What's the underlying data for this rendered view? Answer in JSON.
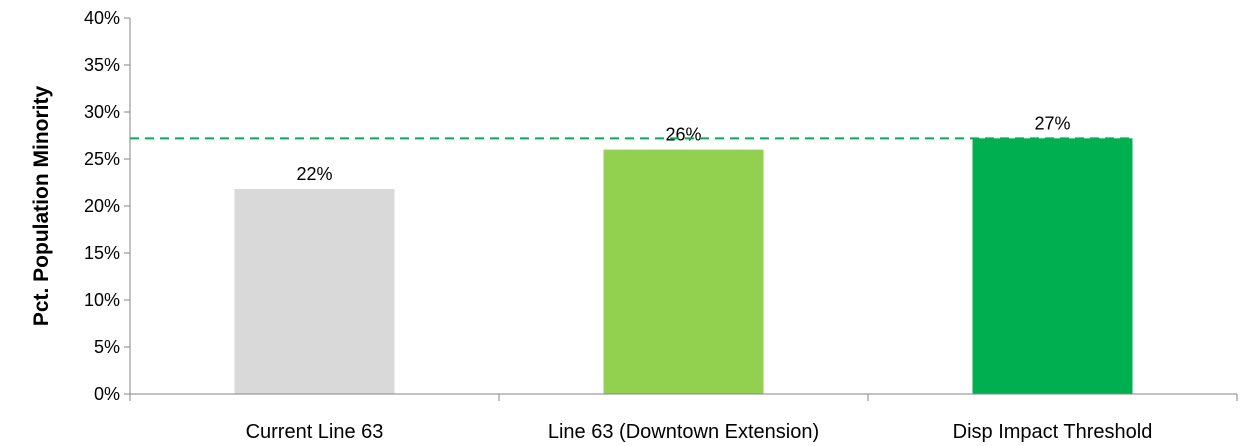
{
  "chart_data": {
    "type": "bar",
    "title": "",
    "xlabel": "",
    "ylabel": "Pct. Population Minority",
    "categories": [
      "Current Line 63",
      "Line 63 (Downtown Extension)",
      "Disp Impact Threshold"
    ],
    "values": [
      0.218,
      0.26,
      0.272
    ],
    "data_labels": [
      "22%",
      "26%",
      "27%"
    ],
    "bar_colors": [
      "#d9d9d9",
      "#92d050",
      "#00b050"
    ],
    "reference_line": {
      "value": 0.272,
      "color": "#00b050",
      "style": "dashed"
    },
    "ylim": [
      0,
      0.4
    ],
    "yticks": [
      0,
      0.05,
      0.1,
      0.15,
      0.2,
      0.25,
      0.3,
      0.35,
      0.4
    ],
    "ytick_labels": [
      "0%",
      "5%",
      "10%",
      "15%",
      "20%",
      "25%",
      "30%",
      "35%",
      "40%"
    ],
    "grid": false,
    "legend": "none"
  }
}
